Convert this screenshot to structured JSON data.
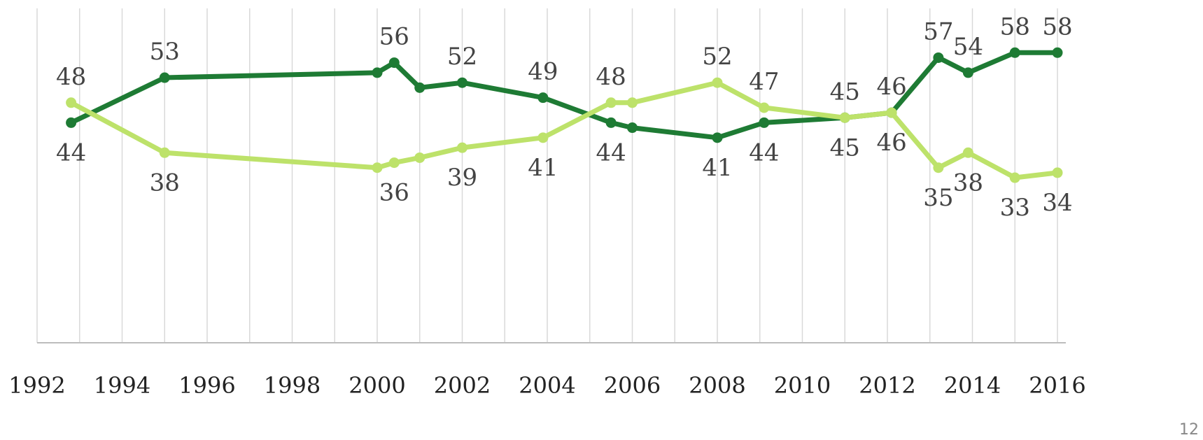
{
  "chart_data": {
    "type": "line",
    "title": "",
    "xlabel": "",
    "ylabel": "",
    "xlim": [
      1992,
      2016
    ],
    "ylim": [
      0,
      65
    ],
    "grid": "vertical",
    "x_ticks": [
      "1992",
      "1994",
      "1996",
      "1998",
      "2000",
      "2002",
      "2004",
      "2006",
      "2008",
      "2010",
      "2012",
      "2014",
      "2016"
    ],
    "series": [
      {
        "color": "#1e7b34",
        "points": [
          {
            "x": 1992.8,
            "y": 44,
            "label": "44"
          },
          {
            "x": 1995,
            "y": 53,
            "label": "53"
          },
          {
            "x": 2000,
            "y": 54
          },
          {
            "x": 2000.4,
            "y": 56,
            "label": "56"
          },
          {
            "x": 2001,
            "y": 51
          },
          {
            "x": 2002,
            "y": 52,
            "label": "52"
          },
          {
            "x": 2003.9,
            "y": 49,
            "label": "49"
          },
          {
            "x": 2005.5,
            "y": 44,
            "label": "44"
          },
          {
            "x": 2006,
            "y": 43
          },
          {
            "x": 2008,
            "y": 41,
            "label": "41"
          },
          {
            "x": 2009.1,
            "y": 44,
            "label": "44"
          },
          {
            "x": 2011,
            "y": 45,
            "label": "45"
          },
          {
            "x": 2012.1,
            "y": 46,
            "label": "46"
          },
          {
            "x": 2013.2,
            "y": 57,
            "label": "57"
          },
          {
            "x": 2013.9,
            "y": 54,
            "label": "54"
          },
          {
            "x": 2015,
            "y": 58,
            "label": "58"
          },
          {
            "x": 2016,
            "y": 58,
            "label": "58"
          }
        ]
      },
      {
        "color": "#bde26a",
        "points": [
          {
            "x": 1992.8,
            "y": 48,
            "label": "48"
          },
          {
            "x": 1995,
            "y": 38,
            "label": "38"
          },
          {
            "x": 2000,
            "y": 35
          },
          {
            "x": 2000.4,
            "y": 36,
            "label": "36"
          },
          {
            "x": 2001,
            "y": 37
          },
          {
            "x": 2002,
            "y": 39,
            "label": "39"
          },
          {
            "x": 2003.9,
            "y": 41,
            "label": "41"
          },
          {
            "x": 2005.5,
            "y": 48,
            "label": "48"
          },
          {
            "x": 2006,
            "y": 48
          },
          {
            "x": 2008,
            "y": 52,
            "label": "52"
          },
          {
            "x": 2009.1,
            "y": 47,
            "label": "47"
          },
          {
            "x": 2011,
            "y": 45,
            "label": "45"
          },
          {
            "x": 2012.1,
            "y": 46,
            "label": "46"
          },
          {
            "x": 2013.2,
            "y": 35,
            "label": "35"
          },
          {
            "x": 2013.9,
            "y": 38,
            "label": "38"
          },
          {
            "x": 2015,
            "y": 33,
            "label": "33"
          },
          {
            "x": 2016,
            "y": 34,
            "label": "34"
          }
        ]
      }
    ]
  },
  "footer": {
    "page_number": "12"
  }
}
